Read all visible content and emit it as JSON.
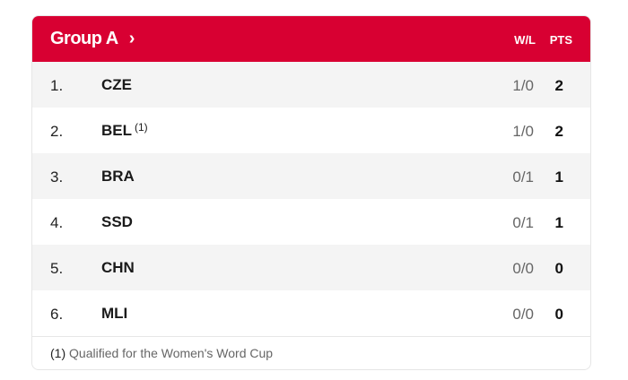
{
  "header": {
    "title": "Group A",
    "chevron_icon": "chevron-right-icon",
    "col_wl": "W/L",
    "col_pts": "PTS",
    "color": "#d80032"
  },
  "rows": [
    {
      "rank": "1.",
      "team": "CZE",
      "note": "",
      "wl": "1/0",
      "pts": "2"
    },
    {
      "rank": "2.",
      "team": "BEL",
      "note": "(1)",
      "wl": "1/0",
      "pts": "2"
    },
    {
      "rank": "3.",
      "team": "BRA",
      "note": "",
      "wl": "0/1",
      "pts": "1"
    },
    {
      "rank": "4.",
      "team": "SSD",
      "note": "",
      "wl": "0/1",
      "pts": "1"
    },
    {
      "rank": "5.",
      "team": "CHN",
      "note": "",
      "wl": "0/0",
      "pts": "0"
    },
    {
      "rank": "6.",
      "team": "MLI",
      "note": "",
      "wl": "0/0",
      "pts": "0"
    }
  ],
  "footer": {
    "marker": "(1)",
    "text": "Qualified for the Women's Word Cup"
  }
}
